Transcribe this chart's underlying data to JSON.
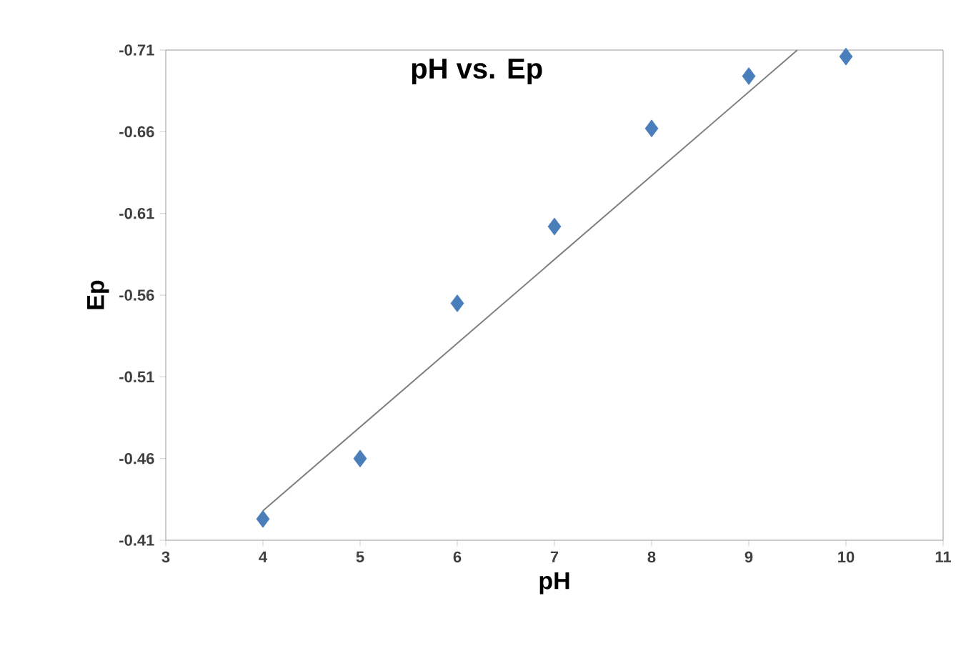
{
  "chart_data": {
    "type": "scatter",
    "title": "pH vs. Ep",
    "xlabel": "pH",
    "ylabel": "Ep",
    "xlim": [
      3,
      11
    ],
    "xticks": [
      3,
      4,
      5,
      6,
      7,
      8,
      9,
      10,
      11
    ],
    "ylim": [
      -0.41,
      -0.71
    ],
    "yticks": [
      -0.41,
      -0.46,
      -0.51,
      -0.56,
      -0.61,
      -0.66,
      -0.71
    ],
    "grid": false,
    "legend": false,
    "series": [
      {
        "color": "#4a7ebb",
        "marker": "diamond",
        "x": [
          4,
          5,
          6,
          7,
          8,
          9,
          10
        ],
        "values": [
          -0.423,
          -0.46,
          -0.555,
          -0.602,
          -0.662,
          -0.694,
          -0.706
        ]
      },
      {
        "type": "line",
        "color": "#7f7f7f",
        "x": [
          4,
          9.5
        ],
        "values": [
          -0.428,
          -0.71
        ],
        "marker": "none",
        "line_style": "solid"
      }
    ]
  }
}
